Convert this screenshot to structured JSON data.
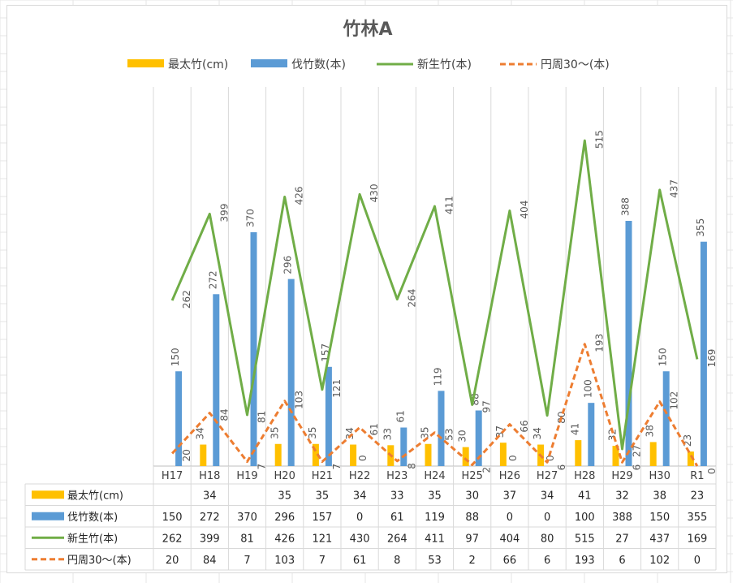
{
  "chart_data": {
    "type": "bar",
    "title": "竹林A",
    "categories": [
      "H17",
      "H18",
      "H19",
      "H20",
      "H21",
      "H22",
      "H23",
      "H24",
      "H25",
      "H26",
      "H27",
      "H28",
      "H29",
      "H30",
      "R1"
    ],
    "series": [
      {
        "name": "最太竹(cm)",
        "kind": "bar",
        "color": "#ffc000",
        "values": [
          null,
          34,
          null,
          35,
          35,
          34,
          33,
          35,
          30,
          37,
          34,
          41,
          32,
          38,
          23
        ]
      },
      {
        "name": "伐竹数(本)",
        "kind": "bar",
        "color": "#5b9bd5",
        "values": [
          150,
          272,
          370,
          296,
          157,
          0,
          61,
          119,
          88,
          0,
          0,
          100,
          388,
          150,
          355
        ]
      },
      {
        "name": "新生竹(本)",
        "kind": "line",
        "color": "#70ad47",
        "values": [
          262,
          399,
          81,
          426,
          121,
          430,
          264,
          411,
          97,
          404,
          80,
          515,
          27,
          437,
          169
        ]
      },
      {
        "name": "円周30～(本)",
        "kind": "line-dashed",
        "color": "#ed7d31",
        "values": [
          20,
          84,
          7,
          103,
          7,
          61,
          8,
          53,
          2,
          66,
          6,
          193,
          6,
          102,
          0
        ]
      }
    ],
    "ylim": [
      0,
      600
    ],
    "grid": true,
    "legend": "top",
    "data_table": true
  }
}
